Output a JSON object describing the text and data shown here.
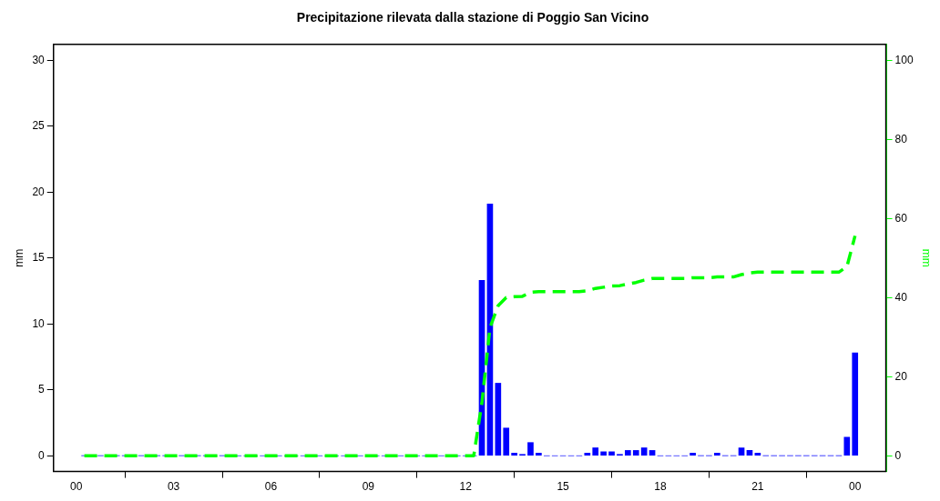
{
  "chart_data": {
    "type": "bar",
    "title": "Precipitazione rilevata dalla stazione di Poggio San Vicino",
    "ylabel": "mm",
    "y2label": "mm",
    "x": [
      0.25,
      0.5,
      0.75,
      1,
      1.25,
      1.5,
      1.75,
      2,
      2.25,
      2.5,
      2.75,
      3,
      3.25,
      3.5,
      3.75,
      4,
      4.25,
      4.5,
      4.75,
      5,
      5.25,
      5.5,
      5.75,
      6,
      6.25,
      6.5,
      6.75,
      7,
      7.25,
      7.5,
      7.75,
      8,
      8.25,
      8.5,
      8.75,
      9,
      9.25,
      9.5,
      9.75,
      10,
      10.25,
      10.5,
      10.75,
      11,
      11.25,
      11.5,
      11.75,
      12,
      12.25,
      12.5,
      12.75,
      13,
      13.25,
      13.5,
      13.75,
      14,
      14.25,
      14.5,
      14.75,
      15,
      15.25,
      15.5,
      15.75,
      16,
      16.25,
      16.5,
      16.75,
      17,
      17.25,
      17.5,
      17.75,
      18,
      18.25,
      18.5,
      18.75,
      19,
      19.25,
      19.5,
      19.75,
      20,
      20.25,
      20.5,
      20.75,
      21,
      21.25,
      21.5,
      21.75,
      22,
      22.25,
      22.5,
      22.75,
      23,
      23.25,
      23.5,
      23.75,
      24
    ],
    "series": [
      {
        "color": "#0000ff",
        "values": [
          0,
          0,
          0,
          0,
          0,
          0,
          0,
          0,
          0,
          0,
          0,
          0,
          0,
          0,
          0,
          0,
          0,
          0,
          0,
          0,
          0,
          0,
          0,
          0,
          0,
          0,
          0,
          0,
          0,
          0,
          0,
          0,
          0,
          0,
          0,
          0,
          0,
          0,
          0,
          0,
          0,
          0,
          0,
          0,
          0,
          0,
          0,
          0,
          0,
          13.3,
          19.1,
          5.5,
          2.1,
          0.2,
          0.1,
          1.0,
          0.2,
          0,
          0,
          0,
          0,
          0,
          0.2,
          0.6,
          0.3,
          0.3,
          0.1,
          0.4,
          0.4,
          0.6,
          0.4,
          0,
          0,
          0,
          0,
          0.2,
          0,
          0,
          0.2,
          0,
          0,
          0.6,
          0.4,
          0.2,
          0,
          0,
          0,
          0,
          0,
          0,
          0,
          0,
          0,
          0,
          1.4,
          7.8
        ]
      },
      {
        "type": "line",
        "color": "#00ff00",
        "axis": "y2",
        "line_style": "dashed",
        "marker": "none",
        "values": [
          0,
          0,
          0,
          0,
          0,
          0,
          0,
          0,
          0,
          0,
          0,
          0,
          0,
          0,
          0,
          0,
          0,
          0,
          0,
          0,
          0,
          0,
          0,
          0,
          0,
          0,
          0,
          0,
          0,
          0,
          0,
          0,
          0,
          0,
          0,
          0,
          0,
          0,
          0,
          0,
          0,
          0,
          0,
          0,
          0,
          0,
          0,
          0,
          0,
          13.3,
          32.4,
          37.9,
          40.0,
          40.2,
          40.3,
          41.3,
          41.5,
          41.5,
          41.5,
          41.5,
          41.5,
          41.5,
          41.7,
          42.3,
          42.6,
          42.9,
          43.0,
          43.4,
          43.8,
          44.4,
          44.8,
          44.8,
          44.8,
          44.8,
          44.8,
          45.0,
          45.0,
          45.0,
          45.2,
          45.2,
          45.2,
          45.8,
          46.2,
          46.4,
          46.4,
          46.4,
          46.4,
          46.4,
          46.4,
          46.4,
          46.4,
          46.4,
          46.4,
          46.4,
          47.8,
          55.6
        ]
      }
    ],
    "xlim": [
      -0.7,
      24.95
    ],
    "xticks": [
      {
        "value": 0,
        "label": "00"
      },
      {
        "value": 3,
        "label": "03"
      },
      {
        "value": 6,
        "label": "06"
      },
      {
        "value": 9,
        "label": "09"
      },
      {
        "value": 12,
        "label": "12"
      },
      {
        "value": 15,
        "label": "15"
      },
      {
        "value": 18,
        "label": "18"
      },
      {
        "value": 21,
        "label": "21"
      },
      {
        "value": 24,
        "label": "00"
      }
    ],
    "ylim": [
      -1.2,
      31.2
    ],
    "yticks": [
      0,
      5,
      10,
      15,
      20,
      25,
      30
    ],
    "y2lim": [
      -4,
      104
    ],
    "y2ticks": [
      0,
      20,
      40,
      60,
      80,
      100
    ],
    "grid": false,
    "legend": false
  }
}
